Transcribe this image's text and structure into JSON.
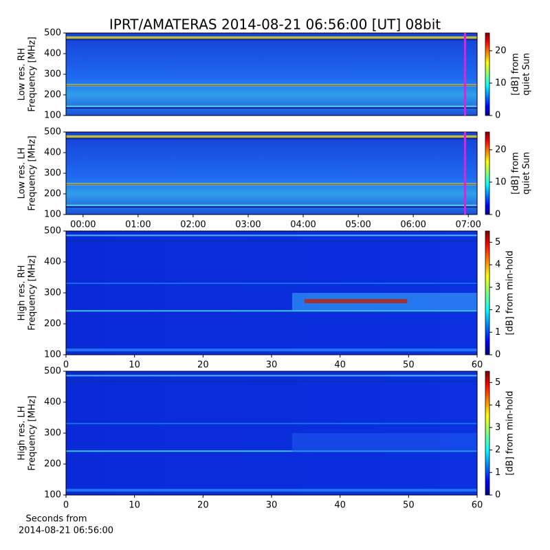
{
  "title": "IPRT/AMATERAS 2014-08-21 06:56:00 [UT]   08bit",
  "x_caption": [
    "Seconds from",
    "2014-08-21 06:56:00"
  ],
  "chart_data": [
    {
      "type": "heatmap",
      "colormap": "jet",
      "ylabel": [
        "Low res. RH",
        "Frequency [MHz]"
      ],
      "xlim": [
        -0.31,
        7.16
      ],
      "xticks": [],
      "ylim": [
        100,
        500
      ],
      "yticks": [
        100,
        200,
        300,
        400,
        500
      ],
      "marker_x": 6.94,
      "marker_color": "#e020e0",
      "colorbar_label": [
        "[dB] from",
        "quiet Sun"
      ],
      "clim": [
        0,
        25.5
      ],
      "cticks": [
        0,
        10,
        20
      ]
    },
    {
      "type": "heatmap",
      "colormap": "jet",
      "ylabel": [
        "Low res. LH",
        "Frequency [MHz]"
      ],
      "xlim": [
        -0.31,
        7.16
      ],
      "xticks": [
        {
          "value": 0,
          "label": "00:00"
        },
        {
          "value": 1,
          "label": "01:00"
        },
        {
          "value": 2,
          "label": "02:00"
        },
        {
          "value": 3,
          "label": "03:00"
        },
        {
          "value": 4,
          "label": "04:00"
        },
        {
          "value": 5,
          "label": "05:00"
        },
        {
          "value": 6,
          "label": "06:00"
        },
        {
          "value": 7,
          "label": "07:00"
        }
      ],
      "ylim": [
        100,
        500
      ],
      "yticks": [
        100,
        200,
        300,
        400,
        500
      ],
      "marker_x": 6.94,
      "marker_color": "#e020e0",
      "colorbar_label": [
        "[dB] from",
        "quiet Sun"
      ],
      "clim": [
        0,
        25.5
      ],
      "cticks": [
        0,
        10,
        20
      ]
    },
    {
      "type": "heatmap",
      "colormap": "jet",
      "ylabel": [
        "High res. RH",
        "Frequency [MHz]"
      ],
      "xlim": [
        0,
        60
      ],
      "xticks": [
        0,
        10,
        20,
        30,
        40,
        50,
        60
      ],
      "ylim": [
        100,
        500
      ],
      "yticks": [
        100,
        200,
        300,
        400,
        500
      ],
      "colorbar_label": [
        "[dB] from min-hold"
      ],
      "clim": [
        0,
        5.5
      ],
      "cticks": [
        0,
        1,
        2,
        3,
        4,
        5
      ]
    },
    {
      "type": "heatmap",
      "colormap": "jet",
      "ylabel": [
        "High res. LH",
        "Frequency [MHz]"
      ],
      "xlim": [
        0,
        60
      ],
      "xticks": [
        0,
        10,
        20,
        30,
        40,
        50,
        60
      ],
      "ylim": [
        100,
        500
      ],
      "yticks": [
        100,
        200,
        300,
        400,
        500
      ],
      "colorbar_label": [
        "[dB] from min-hold"
      ],
      "clim": [
        0,
        5.5
      ],
      "cticks": [
        0,
        1,
        2,
        3,
        4,
        5
      ]
    }
  ]
}
